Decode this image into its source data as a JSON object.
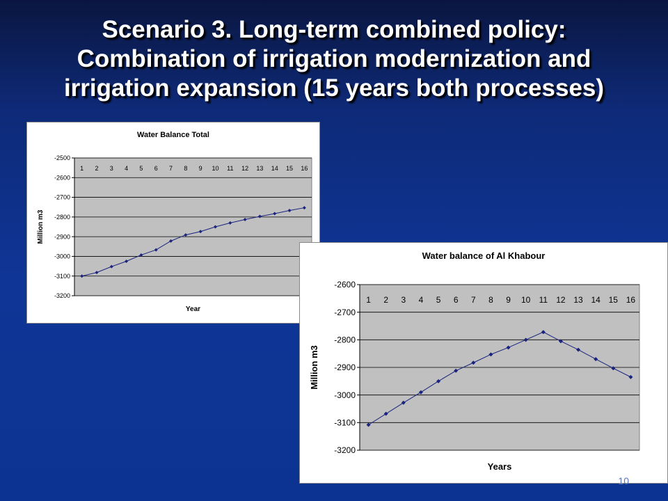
{
  "slide": {
    "title_lines": [
      "Scenario 3. Long-term combined policy:",
      "Combination of irrigation modernization and",
      "irrigation expansion (15 years both processes)"
    ],
    "slide_number": "10"
  },
  "chart_data": [
    {
      "type": "line",
      "title": "Water Balance Total",
      "xlabel": "Year",
      "ylabel": "Million m3",
      "x": [
        1,
        2,
        3,
        4,
        5,
        6,
        7,
        8,
        9,
        10,
        11,
        12,
        13,
        14,
        15,
        16
      ],
      "series": [
        {
          "name": "",
          "values": [
            -3100,
            -3082,
            -3052,
            -3025,
            -2993,
            -2967,
            -2922,
            -2891,
            -2874,
            -2850,
            -2830,
            -2813,
            -2797,
            -2783,
            -2767,
            -2753
          ]
        }
      ],
      "ylim": [
        -3200,
        -2500
      ],
      "yticks": [
        -2500,
        -2600,
        -2700,
        -2800,
        -2900,
        -3000,
        -3100,
        -3200
      ],
      "grid": true,
      "plot_bg": "#c0c0c0",
      "line_color": "#1a237e"
    },
    {
      "type": "line",
      "title": "Water balance of Al Khabour",
      "xlabel": "Years",
      "ylabel": "Million m3",
      "x": [
        1,
        2,
        3,
        4,
        5,
        6,
        7,
        8,
        9,
        10,
        11,
        12,
        13,
        14,
        15,
        16
      ],
      "series": [
        {
          "name": "",
          "values": [
            -3108,
            -3068,
            -3028,
            -2990,
            -2950,
            -2912,
            -2883,
            -2853,
            -2828,
            -2800,
            -2772,
            -2805,
            -2836,
            -2870,
            -2903,
            -2935
          ]
        }
      ],
      "ylim": [
        -3200,
        -2600
      ],
      "yticks": [
        -2600,
        -2700,
        -2800,
        -2900,
        -3000,
        -3100,
        -3200
      ],
      "grid": true,
      "plot_bg": "#c0c0c0",
      "line_color": "#1a237e"
    }
  ]
}
